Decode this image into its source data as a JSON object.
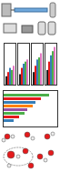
{
  "chart_data": [
    {
      "type": "bar",
      "categories": [
        null,
        null,
        null,
        null
      ],
      "series": [
        {
          "color": "#222222",
          "values": [
            20,
            25,
            30,
            35
          ]
        },
        {
          "color": "#e41a1c",
          "values": [
            30,
            40,
            45,
            55
          ]
        },
        {
          "color": "#377eb8",
          "values": [
            40,
            50,
            60,
            70
          ]
        },
        {
          "color": "#4daf4a",
          "values": [
            35,
            55,
            65,
            80
          ]
        },
        {
          "color": "#e377c2",
          "values": [
            45,
            60,
            75,
            90
          ]
        }
      ],
      "ylim": [
        0,
        100
      ],
      "tick_labels": false
    },
    {
      "type": "bar",
      "orientation": "horizontal",
      "categories": [
        null,
        null,
        null,
        null,
        null,
        null,
        null,
        null
      ],
      "values": [
        85,
        70,
        60,
        55,
        45,
        40,
        30,
        20
      ],
      "colors": [
        "#4daf4a",
        "#e41a1c",
        "#377eb8",
        "#ff7f00",
        "#984ea3",
        "#4daf4a",
        "#e41a1c",
        "#377eb8"
      ],
      "xlim": [
        0,
        100
      ],
      "tick_labels": false
    }
  ]
}
